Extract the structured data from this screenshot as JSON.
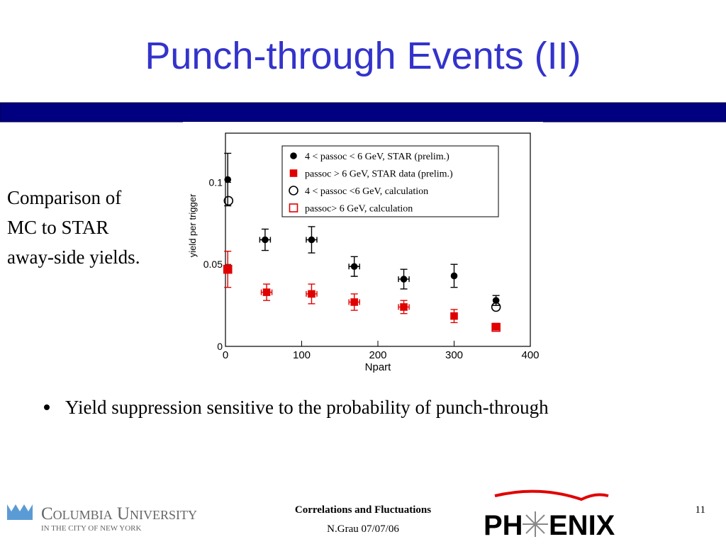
{
  "slide": {
    "title": "Punch-through Events (II)",
    "side_text": [
      "Comparison of",
      "MC to STAR",
      "away-side yields."
    ],
    "bullet": "Yield suppression sensitive to the probability of punch-through",
    "footer": {
      "line1": "Correlations and Fluctuations",
      "line2": "N.Grau 07/07/06",
      "page": "11"
    },
    "logo_left": {
      "name": "Columbia University",
      "sub": "IN THE CITY OF NEW YORK"
    },
    "logo_right": [
      "PH",
      "ENIX"
    ]
  },
  "chart_data": {
    "type": "scatter",
    "xlabel": "Npart",
    "ylabel": "yield per trigger",
    "xlim": [
      0,
      400
    ],
    "xticks": [
      0,
      100,
      200,
      300,
      400
    ],
    "ylim": [
      0,
      0.13
    ],
    "yticks": [
      0,
      0.05,
      0.1
    ],
    "legend": "upper right",
    "series": [
      {
        "name": "4 < passoc < 6 GeV, STAR (prelim.)",
        "color": "#000000",
        "marker": "filled-circle",
        "x": [
          3,
          52,
          113,
          169,
          234,
          300,
          355
        ],
        "values": [
          0.1017,
          0.065,
          0.065,
          0.0487,
          0.041,
          0.043,
          0.028
        ],
        "errors": [
          0.016,
          0.0065,
          0.008,
          0.006,
          0.006,
          0.007,
          0.003
        ],
        "xerrors": [
          0,
          7,
          7,
          7,
          7,
          0,
          0
        ]
      },
      {
        "name": "passoc > 6 GeV, STAR data (prelim.)",
        "color": "#e00000",
        "marker": "filled-square",
        "x": [
          3,
          54,
          113,
          169,
          234,
          300,
          355
        ],
        "values": [
          0.047,
          0.033,
          0.032,
          0.027,
          0.024,
          0.0185,
          0.012
        ],
        "errors": [
          0.011,
          0.005,
          0.006,
          0.005,
          0.004,
          0.004,
          0.002
        ],
        "xerrors": [
          0,
          7,
          7,
          7,
          7,
          0,
          0
        ]
      },
      {
        "name": "4 < passoc <6 GeV, calculation",
        "color": "#000000",
        "marker": "open-circle",
        "x": [
          4,
          355
        ],
        "values": [
          0.0888,
          0.024
        ]
      },
      {
        "name": "passoc> 6 GeV, calculation",
        "color": "#e00000",
        "marker": "open-square",
        "x": [
          3,
          355
        ],
        "values": [
          0.047,
          0.0116
        ]
      }
    ]
  }
}
